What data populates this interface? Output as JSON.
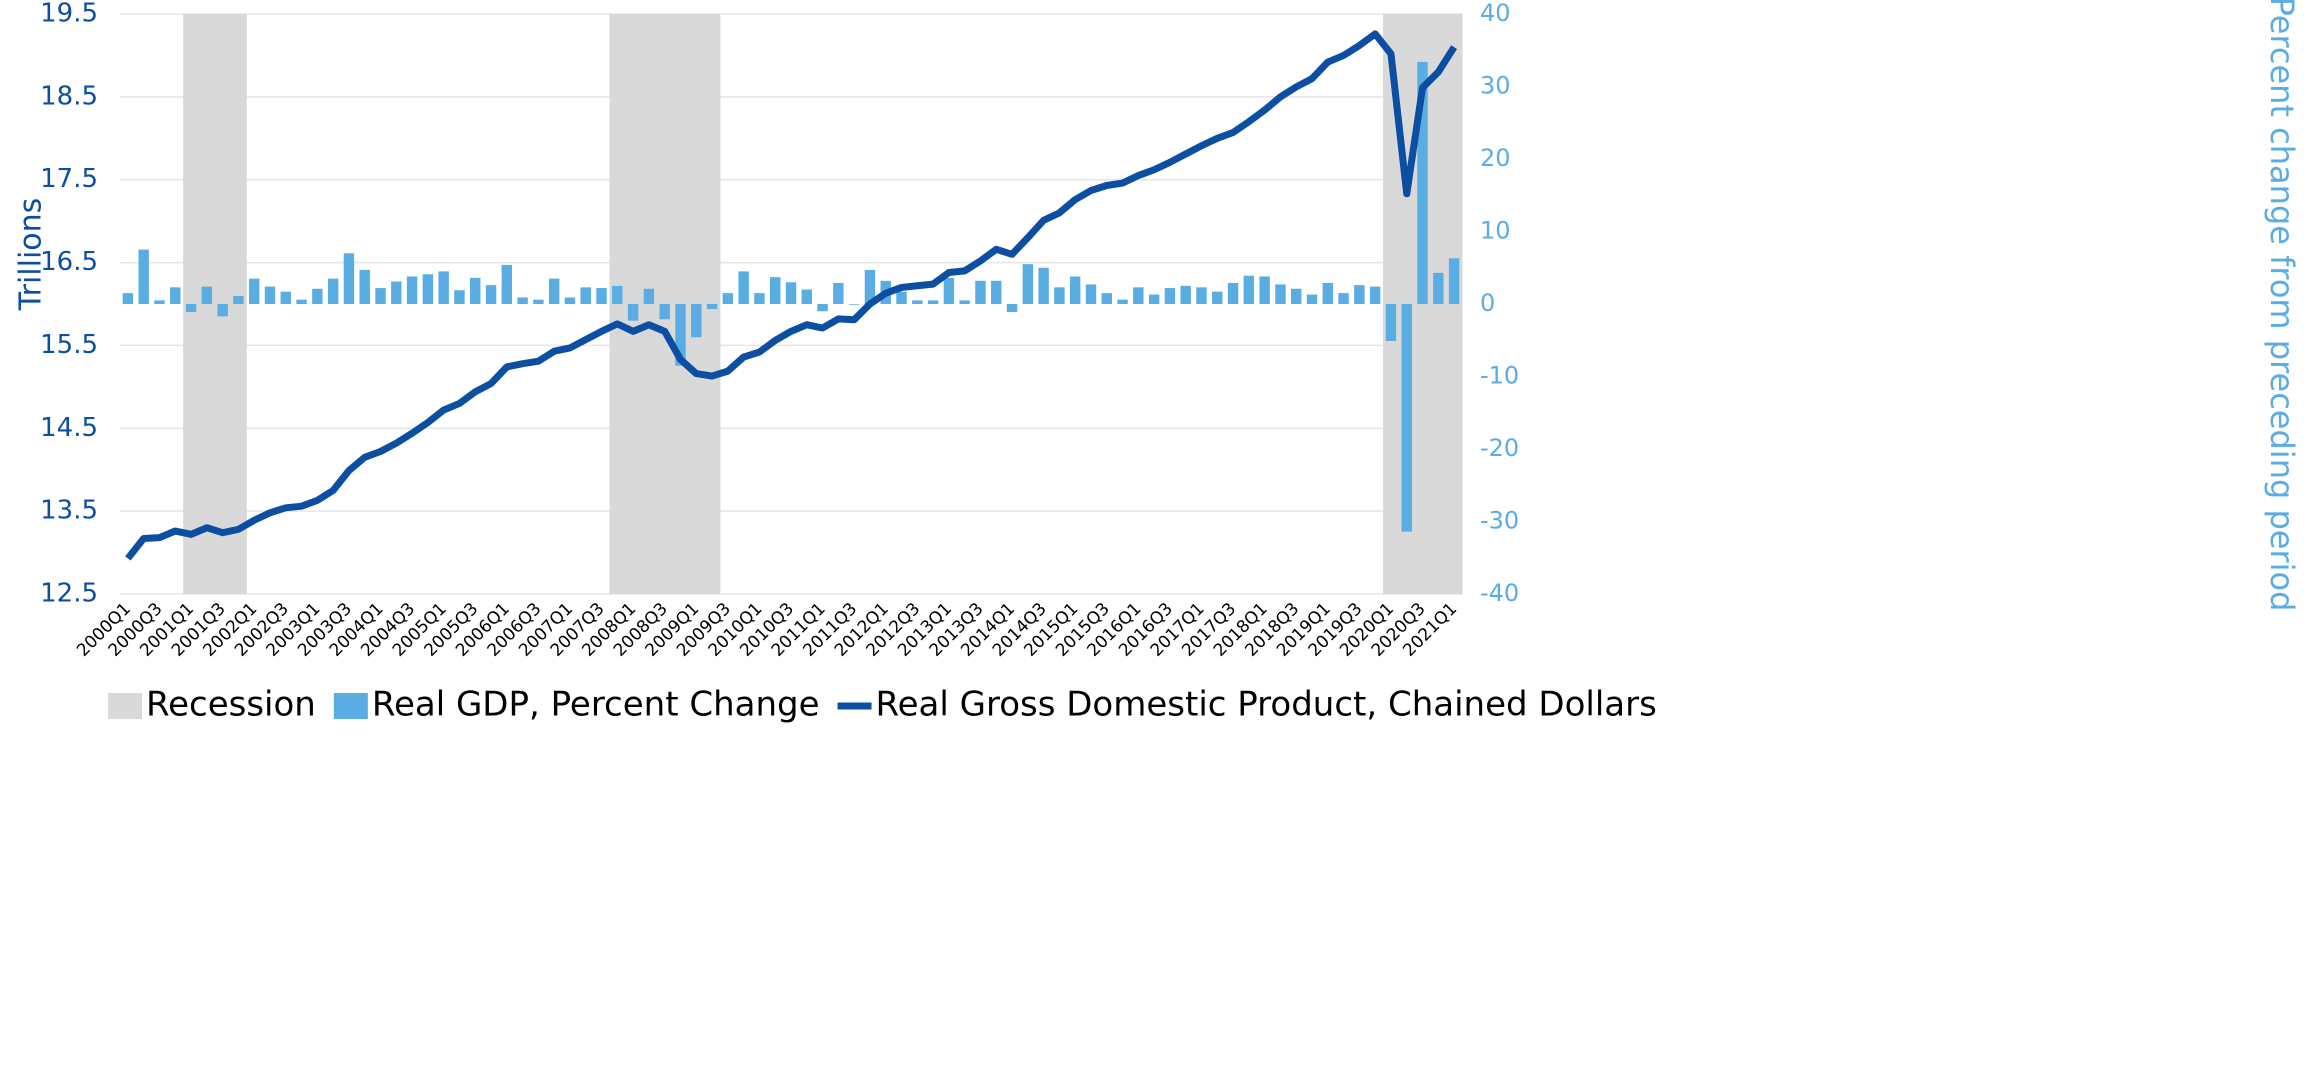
{
  "chart_data": {
    "type": "bar_line",
    "categories": [
      "2000Q1",
      null,
      "2000Q3",
      null,
      "2001Q1",
      null,
      "2001Q3",
      null,
      "2002Q1",
      null,
      "2002Q3",
      null,
      "2003Q1",
      null,
      "2003Q3",
      null,
      "2004Q1",
      null,
      "2004Q3",
      null,
      "2005Q1",
      null,
      "2005Q3",
      null,
      "2006Q1",
      null,
      "2006Q3",
      null,
      "2007Q1",
      null,
      "2007Q3",
      null,
      "2008Q1",
      null,
      "2008Q3",
      null,
      "2009Q1",
      null,
      "2009Q3",
      null,
      "2010Q1",
      null,
      "2010Q3",
      null,
      "2011Q1",
      null,
      "2011Q3",
      null,
      "2012Q1",
      null,
      "2012Q3",
      null,
      "2013Q1",
      null,
      "2013Q3",
      null,
      "2014Q1",
      null,
      "2014Q3",
      null,
      "2015Q1",
      null,
      "2015Q3",
      null,
      "2016Q1",
      null,
      "2016Q3",
      null,
      "2017Q1",
      null,
      "2017Q3",
      null,
      "2018Q1",
      null,
      "2018Q3",
      null,
      "2019Q1",
      null,
      "2019Q3",
      null,
      "2020Q1",
      null,
      "2020Q3",
      null,
      "2021Q1"
    ],
    "series": [
      {
        "name": "Recession",
        "type": "band",
        "color": "#d9d9d9",
        "values": [
          0,
          0,
          0,
          0,
          1,
          1,
          1,
          1,
          0,
          0,
          0,
          0,
          0,
          0,
          0,
          0,
          0,
          0,
          0,
          0,
          0,
          0,
          0,
          0,
          0,
          0,
          0,
          0,
          0,
          0,
          0,
          1,
          1,
          1,
          1,
          1,
          1,
          1,
          0,
          0,
          0,
          0,
          0,
          0,
          0,
          0,
          0,
          0,
          0,
          0,
          0,
          0,
          0,
          0,
          0,
          0,
          0,
          0,
          0,
          0,
          0,
          0,
          0,
          0,
          0,
          0,
          0,
          0,
          0,
          0,
          0,
          0,
          0,
          0,
          0,
          0,
          0,
          0,
          0,
          0,
          1,
          1,
          1,
          1,
          1
        ]
      },
      {
        "name": "Real GDP, Percent Change",
        "type": "bar",
        "axis": "y2",
        "color": "#5aade2",
        "values": [
          1.5,
          7.5,
          0.5,
          2.3,
          -1.1,
          2.4,
          -1.7,
          1.1,
          3.5,
          2.4,
          1.7,
          0.6,
          2.1,
          3.5,
          7.0,
          4.7,
          2.2,
          3.1,
          3.8,
          4.1,
          4.5,
          1.9,
          3.6,
          2.6,
          5.4,
          0.9,
          0.6,
          3.5,
          0.9,
          2.3,
          2.2,
          2.5,
          -2.3,
          2.1,
          -2.1,
          -8.5,
          -4.6,
          -0.7,
          1.5,
          4.5,
          1.5,
          3.7,
          3.0,
          2.0,
          -1.0,
          2.9,
          -0.1,
          4.7,
          3.2,
          1.7,
          0.5,
          0.5,
          3.6,
          0.5,
          3.2,
          3.2,
          -1.1,
          5.5,
          5.0,
          2.3,
          3.8,
          2.7,
          1.5,
          0.6,
          2.3,
          1.3,
          2.2,
          2.5,
          2.3,
          1.7,
          2.9,
          3.9,
          3.8,
          2.7,
          2.1,
          1.3,
          2.9,
          1.5,
          2.6,
          2.4,
          -5.1,
          -31.4,
          33.4,
          4.3,
          6.3
        ]
      },
      {
        "name": "Real Gross Domestic Product, Chained Dollars",
        "type": "line",
        "axis": "y",
        "color": "#0b4ea2",
        "values": [
          12.93,
          13.17,
          13.18,
          13.26,
          13.22,
          13.3,
          13.24,
          13.28,
          13.39,
          13.48,
          13.54,
          13.56,
          13.63,
          13.75,
          13.99,
          14.15,
          14.22,
          14.32,
          14.44,
          14.57,
          14.72,
          14.8,
          14.94,
          15.04,
          15.24,
          15.28,
          15.31,
          15.43,
          15.47,
          15.57,
          15.67,
          15.76,
          15.67,
          15.75,
          15.67,
          15.33,
          15.16,
          15.13,
          15.19,
          15.36,
          15.42,
          15.56,
          15.67,
          15.75,
          15.71,
          15.82,
          15.81,
          16.0,
          16.13,
          16.2,
          16.22,
          16.24,
          16.38,
          16.4,
          16.52,
          16.66,
          16.6,
          16.8,
          17.01,
          17.1,
          17.26,
          17.37,
          17.43,
          17.46,
          17.55,
          17.62,
          17.71,
          17.81,
          17.91,
          18.0,
          18.07,
          18.2,
          18.34,
          18.5,
          18.62,
          18.72,
          18.92,
          19.0,
          19.12,
          19.26,
          19.02,
          17.33,
          18.61,
          18.8,
          19.1
        ]
      }
    ],
    "ylabel": "Trillions",
    "y2label": "Percent change from preceding period",
    "ylim": [
      12.5,
      19.5
    ],
    "yticks": [
      12.5,
      13.5,
      14.5,
      15.5,
      16.5,
      17.5,
      18.5,
      19.5
    ],
    "y2lim": [
      -40,
      40
    ],
    "y2ticks": [
      -40,
      -30,
      -20,
      -10,
      0,
      10,
      20,
      30,
      40
    ],
    "grid": true,
    "legend": "bottom"
  }
}
